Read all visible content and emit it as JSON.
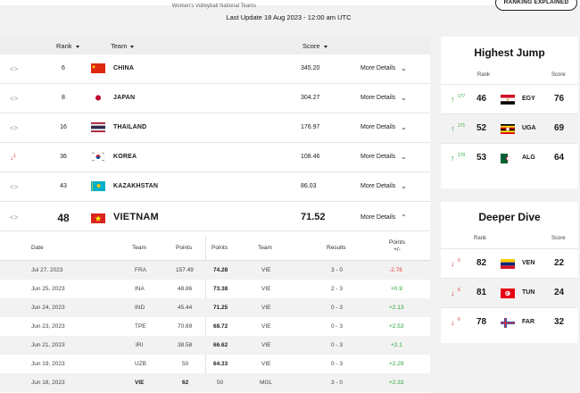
{
  "header": {
    "subtitle": "Women's Volleyball National Teams",
    "last_update": "Last Update 18 Aug 2023 - 12:00 am UTC",
    "ranking_explained": "RANKING EXPLAINED"
  },
  "table": {
    "col_rank": "Rank",
    "col_team": "Team",
    "col_score": "Score",
    "rows": [
      {
        "trend": "<>",
        "rank": "6",
        "country": "CHINA",
        "score": "345.20",
        "more": "More Details"
      },
      {
        "trend": "<>",
        "rank": "8",
        "country": "JAPAN",
        "score": "304.27",
        "more": "More Details"
      },
      {
        "trend": "<>",
        "rank": "16",
        "country": "THAILAND",
        "score": "176.97",
        "more": "More Details"
      },
      {
        "trend": "↓",
        "trend_num": "1",
        "rank": "36",
        "country": "KOREA",
        "score": "108.46",
        "more": "More Details"
      },
      {
        "trend": "<>",
        "rank": "43",
        "country": "KAZAKHSTAN",
        "score": "86.03",
        "more": "More Details"
      },
      {
        "trend": "<>",
        "rank": "48",
        "country": "VIETNAM",
        "score": "71.52",
        "more": "More Details"
      }
    ]
  },
  "details": {
    "headers": {
      "date": "Date",
      "team1": "Team",
      "points1": "Points",
      "points2": "Points",
      "team2": "Team",
      "results": "Results",
      "pm_line1": "Points",
      "pm_line2": "+/-"
    },
    "rows": [
      {
        "date": "Jul 27, 2023",
        "team1": "FRA",
        "points1": "157.49",
        "points2": "74.28",
        "team2": "VIE",
        "result": "3 - 0",
        "pm": "-2.76"
      },
      {
        "date": "Jun 25, 2023",
        "team1": "INA",
        "points1": "48.86",
        "points2": "73.38",
        "team2": "VIE",
        "result": "2 - 3",
        "pm": "+0.9"
      },
      {
        "date": "Jun 24, 2023",
        "team1": "IND",
        "points1": "45.44",
        "points2": "71.25",
        "team2": "VIE",
        "result": "0 - 3",
        "pm": "+2.13"
      },
      {
        "date": "Jun 23, 2023",
        "team1": "TPE",
        "points1": "70.69",
        "points2": "68.72",
        "team2": "VIE",
        "result": "0 - 3",
        "pm": "+2.53"
      },
      {
        "date": "Jun 21, 2023",
        "team1": "IRI",
        "points1": "38.58",
        "points2": "66.62",
        "team2": "VIE",
        "result": "0 - 3",
        "pm": "+2.1"
      },
      {
        "date": "Jun 19, 2023",
        "team1": "UZB",
        "points1": "50",
        "points2": "64.33",
        "team2": "VIE",
        "result": "0 - 3",
        "pm": "+2.29"
      },
      {
        "date": "Jun 18, 2023",
        "team1": "VIE",
        "points1": "62",
        "points2": "50",
        "team2": "MGL",
        "result": "3 - 0",
        "pm": "+2.33"
      }
    ]
  },
  "highest_jump": {
    "title": "Highest Jump",
    "rank_label": "Rank",
    "score_label": "Score",
    "rows": [
      {
        "move": "177",
        "rank": "46",
        "code": "EGY",
        "score": "76"
      },
      {
        "move": "171",
        "rank": "52",
        "code": "UGA",
        "score": "69"
      },
      {
        "move": "170",
        "rank": "53",
        "code": "ALG",
        "score": "64"
      }
    ]
  },
  "deeper_dive": {
    "title": "Deeper Dive",
    "rank_label": "Rank",
    "score_label": "Score",
    "rows": [
      {
        "move": "6",
        "rank": "82",
        "code": "VEN",
        "score": "22"
      },
      {
        "move": "6",
        "rank": "81",
        "code": "TUN",
        "score": "24"
      },
      {
        "move": "6",
        "rank": "78",
        "code": "FAR",
        "score": "32"
      }
    ]
  },
  "colors": {
    "positive": "#2aa436",
    "negative": "#d83b3b",
    "header_bg": "#eeeeee"
  }
}
